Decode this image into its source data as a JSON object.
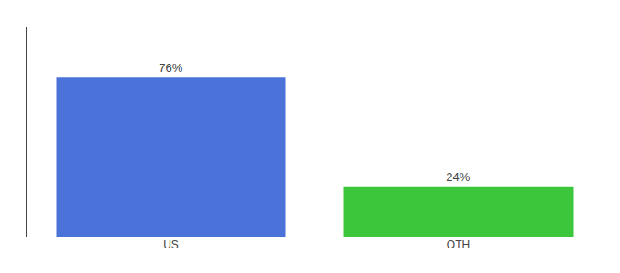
{
  "chart_data": {
    "type": "bar",
    "categories": [
      "US",
      "OTH"
    ],
    "values": [
      76,
      24
    ],
    "value_labels": [
      "76%",
      "24%"
    ],
    "data_labels": true,
    "colors": [
      "#4B72D9",
      "#3CC63C"
    ],
    "ylim": [
      0,
      100
    ],
    "tick_labels": "x",
    "grid": false
  }
}
